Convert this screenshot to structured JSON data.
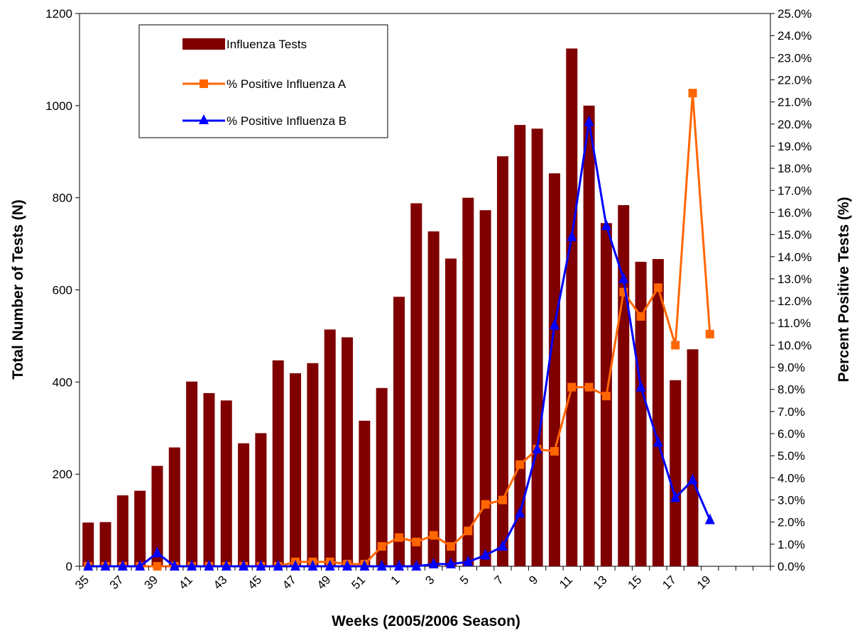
{
  "chart_data": {
    "type": "bar",
    "title": "",
    "xlabel": "Weeks (2005/2006 Season)",
    "ylabel_left": "Total Number of Tests (N)",
    "ylabel_right": "Percent Positive Tests (%)",
    "ylim_left": [
      0,
      1200
    ],
    "ylim_right": [
      0,
      25
    ],
    "yticks_left": [
      "0",
      "200",
      "400",
      "600",
      "800",
      "1000",
      "1200"
    ],
    "yticks_right": [
      "0.0%",
      "1.0%",
      "2.0%",
      "3.0%",
      "4.0%",
      "5.0%",
      "6.0%",
      "7.0%",
      "8.0%",
      "9.0%",
      "10.0%",
      "11.0%",
      "12.0%",
      "13.0%",
      "14.0%",
      "15.0%",
      "16.0%",
      "17.0%",
      "18.0%",
      "19.0%",
      "20.0%",
      "21.0%",
      "22.0%",
      "23.0%",
      "24.0%",
      "25.0%"
    ],
    "categories": [
      "35",
      "36",
      "37",
      "38",
      "39",
      "40",
      "41",
      "42",
      "43",
      "44",
      "45",
      "46",
      "47",
      "48",
      "49",
      "50",
      "51",
      "52",
      "1",
      "2",
      "3",
      "4",
      "5",
      "6",
      "7",
      "8",
      "9",
      "10",
      "11",
      "12",
      "13",
      "14",
      "15",
      "16",
      "17",
      "18",
      "19",
      "20",
      "21",
      "22"
    ],
    "x_tick_labels": [
      "35",
      "37",
      "39",
      "41",
      "43",
      "45",
      "47",
      "49",
      "51",
      "1",
      "3",
      "5",
      "7",
      "9",
      "11",
      "13",
      "15",
      "17",
      "19"
    ],
    "legend_position": "top-left",
    "grid": false,
    "series": [
      {
        "name": "Influenza Tests",
        "kind": "bar",
        "axis": "left",
        "color": "#800000",
        "values": [
          95,
          96,
          154,
          164,
          218,
          258,
          401,
          376,
          360,
          267,
          289,
          447,
          419,
          441,
          514,
          497,
          316,
          387,
          585,
          788,
          727,
          668,
          800,
          773,
          890,
          958,
          950,
          853,
          1124,
          1000,
          745,
          784,
          661,
          667,
          404,
          471,
          null,
          null,
          null,
          null
        ]
      },
      {
        "name": "% Positive Influenza A",
        "kind": "line",
        "axis": "right",
        "color": "#ff6600",
        "marker": "square",
        "values": [
          0.0,
          0.0,
          0.0,
          0.0,
          0.0,
          0.0,
          0.0,
          0.0,
          0.0,
          0.0,
          0.0,
          0.0,
          0.2,
          0.2,
          0.2,
          0.1,
          0.1,
          0.9,
          1.3,
          1.1,
          1.4,
          0.9,
          1.6,
          2.8,
          3.0,
          4.6,
          5.3,
          5.2,
          8.1,
          8.1,
          7.7,
          12.4,
          11.3,
          12.6,
          10.0,
          21.4,
          10.5,
          null,
          null,
          null
        ]
      },
      {
        "name": "% Positive Influenza B",
        "kind": "line",
        "axis": "right",
        "color": "#0000ff",
        "marker": "triangle",
        "values": [
          0.0,
          0.0,
          0.0,
          0.0,
          0.6,
          0.0,
          0.0,
          0.0,
          0.0,
          0.0,
          0.0,
          0.0,
          0.0,
          0.0,
          0.0,
          0.0,
          0.0,
          0.0,
          0.0,
          0.0,
          0.1,
          0.1,
          0.2,
          0.5,
          0.9,
          2.4,
          5.3,
          10.9,
          14.9,
          20.1,
          15.4,
          13.0,
          8.1,
          5.6,
          3.1,
          3.9,
          2.1,
          null,
          null,
          null
        ]
      }
    ]
  }
}
